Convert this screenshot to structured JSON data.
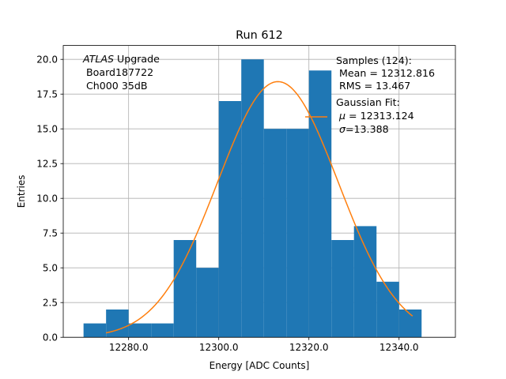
{
  "chart_data": {
    "type": "bar",
    "title": "Run 612",
    "xlabel": "Energy [ADC Counts]",
    "ylabel": "Entries",
    "xlim": [
      12265.5,
      12352.5
    ],
    "ylim": [
      0,
      21
    ],
    "grid": true,
    "x_ticks": [
      12280.0,
      12300.0,
      12320.0,
      12340.0
    ],
    "x_tick_labels": [
      "12280.0",
      "12300.0",
      "12320.0",
      "12340.0"
    ],
    "y_ticks": [
      0.0,
      2.5,
      5.0,
      7.5,
      10.0,
      12.5,
      15.0,
      17.5,
      20.0
    ],
    "y_tick_labels": [
      "0.0",
      "2.5",
      "5.0",
      "7.5",
      "10.0",
      "12.5",
      "15.0",
      "17.5",
      "20.0"
    ],
    "bar_color": "#1f77b4",
    "fit_color": "#ff7f0e",
    "series": [
      {
        "type": "histogram",
        "bins": [
          {
            "x0": 12270,
            "x1": 12275,
            "value": 1
          },
          {
            "x0": 12275,
            "x1": 12280,
            "value": 2
          },
          {
            "x0": 12280,
            "x1": 12285,
            "value": 1
          },
          {
            "x0": 12285,
            "x1": 12290,
            "value": 1
          },
          {
            "x0": 12290,
            "x1": 12295,
            "value": 7
          },
          {
            "x0": 12295,
            "x1": 12300,
            "value": 5
          },
          {
            "x0": 12300,
            "x1": 12305,
            "value": 17
          },
          {
            "x0": 12305,
            "x1": 12310,
            "value": 20
          },
          {
            "x0": 12310,
            "x1": 12315,
            "value": 15
          },
          {
            "x0": 12315,
            "x1": 12320,
            "value": 15
          },
          {
            "x0": 12320,
            "x1": 12325,
            "value": 19.2
          },
          {
            "x0": 12325,
            "x1": 12330,
            "value": 7
          },
          {
            "x0": 12330,
            "x1": 12335,
            "value": 8
          },
          {
            "x0": 12335,
            "x1": 12340,
            "value": 4
          },
          {
            "x0": 12340,
            "x1": 12345,
            "value": 2
          }
        ]
      },
      {
        "type": "line",
        "fit": "gaussian",
        "x_range": [
          12275,
          12343
        ],
        "amplitude": 18.4,
        "mu": 12313.124,
        "sigma": 13.388
      }
    ],
    "annotation": {
      "line1_italic": "ATLAS",
      "line1_rest": " Upgrade",
      "line2": " Board187722",
      "line3": " Ch000 35dB"
    },
    "legend": {
      "position": "top-right",
      "samples_line1": "Samples (124):",
      "samples_line2": " Mean = 12312.816",
      "samples_line3": " RMS = 13.467",
      "fit_line1": "Gaussian Fit:",
      "fit_mu_symbol": "μ",
      "fit_mu_value": " = 12313.124",
      "fit_sigma_symbol": "σ",
      "fit_sigma_value": "=13.388"
    }
  }
}
